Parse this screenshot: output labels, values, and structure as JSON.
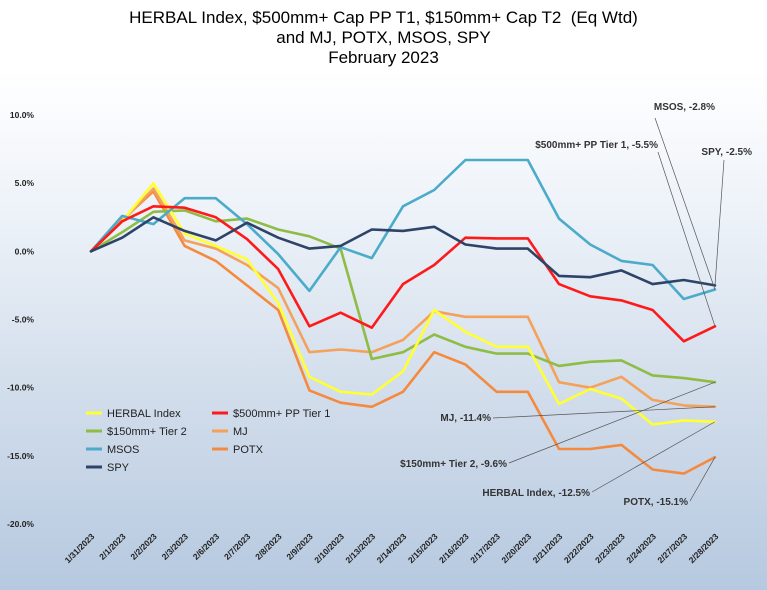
{
  "chart_data": {
    "type": "line",
    "title": [
      "HERBAL Index, $500mm+ Cap PP T1, $150mm+ Cap T2  (Eq Wtd)",
      "and MJ, POTX, MSOS, SPY",
      "February 2023"
    ],
    "xlabel": "",
    "ylabel": "",
    "categories": [
      "1/31/2023",
      "2/1/2023",
      "2/2/2023",
      "2/3/2023",
      "2/6/2023",
      "2/7/2023",
      "2/8/2023",
      "2/9/2023",
      "2/10/2023",
      "2/13/2023",
      "2/14/2023",
      "2/15/2023",
      "2/16/2023",
      "2/17/2023",
      "2/20/2023",
      "2/21/2023",
      "2/22/2023",
      "2/23/2023",
      "2/24/2023",
      "2/27/2023",
      "2/28/2023"
    ],
    "ylim": [
      -20,
      10
    ],
    "yticks": [
      10,
      5,
      0,
      -5,
      -10,
      -15,
      -20
    ],
    "ytick_labels": [
      "10.0%",
      "5.0%",
      "0.0%",
      "-5.0%",
      "-10.0%",
      "-15.0%",
      "-20.0%"
    ],
    "grid": false,
    "legend_position": "bottom-left",
    "series": [
      {
        "name": "HERBAL Index",
        "color": "#ffff33",
        "values": [
          0,
          2.2,
          5.0,
          1.3,
          0.4,
          -0.6,
          -3.8,
          -9.2,
          -10.3,
          -10.5,
          -8.8,
          -4.3,
          -5.9,
          -7.0,
          -7.0,
          -11.2,
          -10.1,
          -10.8,
          -12.7,
          -12.4,
          -12.5
        ]
      },
      {
        "name": "$500mm+ PP Tier 1",
        "color": "#ff1a1a",
        "values": [
          0,
          2.2,
          3.3,
          3.2,
          2.5,
          0.9,
          -1.3,
          -5.5,
          -4.5,
          -5.6,
          -2.4,
          -1.0,
          1.0,
          0.95,
          0.95,
          -2.4,
          -3.3,
          -3.6,
          -4.3,
          -6.6,
          -5.5
        ]
      },
      {
        "name": "$150mm+ Tier 2",
        "color": "#8fbc45",
        "values": [
          0,
          1.4,
          2.9,
          3.0,
          2.2,
          2.4,
          1.6,
          1.1,
          0.2,
          -7.9,
          -7.4,
          -6.1,
          -7.0,
          -7.5,
          -7.5,
          -8.4,
          -8.1,
          -8.0,
          -9.1,
          -9.3,
          -9.6
        ]
      },
      {
        "name": "MJ",
        "color": "#f4a15a",
        "values": [
          0,
          2.2,
          4.6,
          0.8,
          0.2,
          -1.0,
          -2.7,
          -7.4,
          -7.2,
          -7.4,
          -6.5,
          -4.4,
          -4.8,
          -4.8,
          -4.8,
          -9.6,
          -10.0,
          -9.2,
          -10.9,
          -11.3,
          -11.4
        ]
      },
      {
        "name": "MSOS",
        "color": "#4cabc9",
        "values": [
          0,
          2.6,
          2.0,
          3.9,
          3.9,
          2.0,
          -0.2,
          -2.9,
          0.3,
          -0.5,
          3.3,
          4.5,
          6.7,
          6.7,
          6.7,
          2.4,
          0.5,
          -0.7,
          -1.0,
          -3.5,
          -2.8
        ]
      },
      {
        "name": "POTX",
        "color": "#f58a3f",
        "values": [
          0,
          2.3,
          4.4,
          0.4,
          -0.7,
          -2.5,
          -4.3,
          -10.2,
          -11.1,
          -11.4,
          -10.3,
          -7.4,
          -8.3,
          -10.3,
          -10.3,
          -14.5,
          -14.5,
          -14.2,
          -16.0,
          -16.3,
          -15.1
        ]
      },
      {
        "name": "SPY",
        "color": "#2e4368",
        "values": [
          0,
          1.0,
          2.5,
          1.5,
          0.8,
          2.1,
          1.0,
          0.2,
          0.4,
          1.6,
          1.5,
          1.8,
          0.5,
          0.2,
          0.2,
          -1.8,
          -1.9,
          -1.4,
          -2.4,
          -2.1,
          -2.5
        ]
      }
    ],
    "legend": [
      {
        "label": "HERBAL Index",
        "color": "#ffff33"
      },
      {
        "label": "$500mm+ PP Tier 1",
        "color": "#ff1a1a"
      },
      {
        "label": "$150mm+ Tier 2",
        "color": "#8fbc45"
      },
      {
        "label": "MJ",
        "color": "#f4a15a"
      },
      {
        "label": "MSOS",
        "color": "#4cabc9"
      },
      {
        "label": "POTX",
        "color": "#f58a3f"
      },
      {
        "label": "SPY",
        "color": "#2e4368"
      }
    ],
    "annotations": [
      {
        "text": "MSOS, -2.8%",
        "series": "MSOS"
      },
      {
        "text": "$500mm+ PP Tier 1, -5.5%",
        "series": "$500mm+ PP Tier 1"
      },
      {
        "text": "SPY, -2.5%",
        "series": "SPY"
      },
      {
        "text": "MJ, -11.4%",
        "series": "MJ"
      },
      {
        "text": "$150mm+ Tier 2, -9.6%",
        "series": "$150mm+ Tier 2"
      },
      {
        "text": "HERBAL Index, -12.5%",
        "series": "HERBAL Index"
      },
      {
        "text": "POTX, -15.1%",
        "series": "POTX"
      }
    ]
  }
}
